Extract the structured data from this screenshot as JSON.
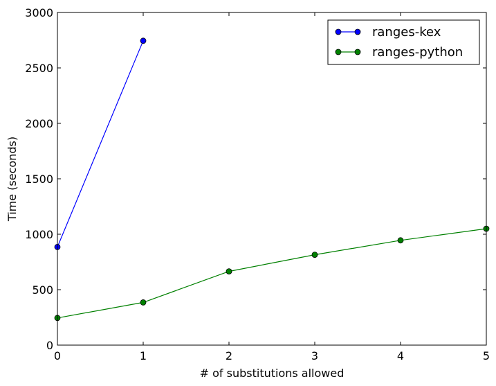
{
  "chart_data": {
    "type": "line",
    "title": "",
    "xlabel": "# of substitutions allowed",
    "ylabel": "Time (seconds)",
    "xlim": [
      0,
      5
    ],
    "ylim": [
      0,
      3000
    ],
    "x_ticks": [
      0,
      1,
      2,
      3,
      4,
      5
    ],
    "y_ticks": [
      0,
      500,
      1000,
      1500,
      2000,
      2500,
      3000
    ],
    "grid": false,
    "legend_position": "top-right",
    "series": [
      {
        "name": "ranges-kex",
        "color": "#0000ff",
        "marker": "circle",
        "x": [
          0,
          1
        ],
        "y": [
          885,
          2745
        ]
      },
      {
        "name": "ranges-python",
        "color": "#008000",
        "marker": "circle",
        "x": [
          0,
          1,
          2,
          3,
          4,
          5
        ],
        "y": [
          245,
          385,
          665,
          815,
          945,
          1050
        ]
      }
    ]
  }
}
